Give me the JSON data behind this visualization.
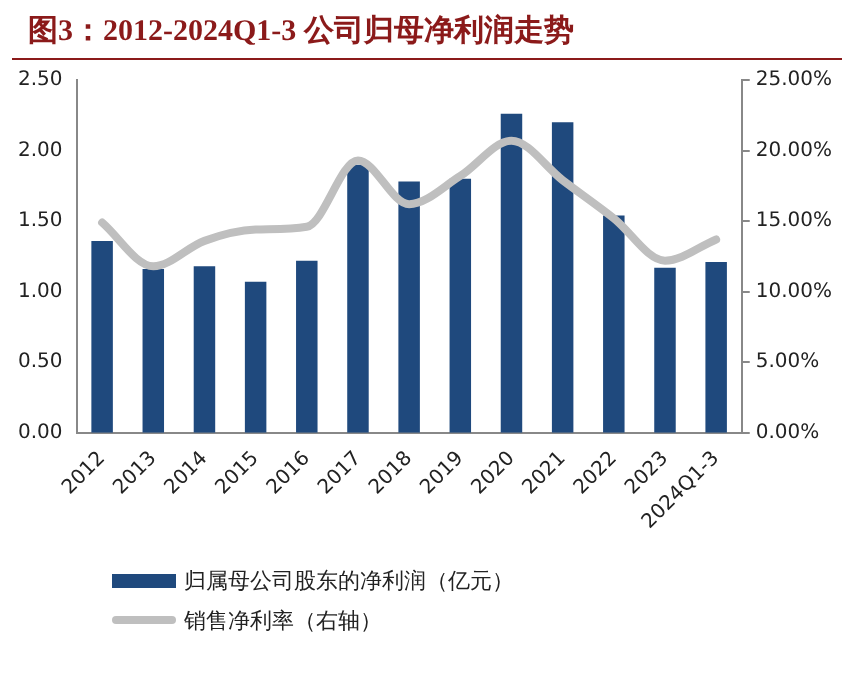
{
  "chart_data": {
    "type": "bar",
    "title": "图3：2012-2024Q1-3 公司归母净利润走势",
    "categories": [
      "2012",
      "2013",
      "2014",
      "2015",
      "2016",
      "2017",
      "2018",
      "2019",
      "2020",
      "2021",
      "2022",
      "2023",
      "2024Q1-3"
    ],
    "series": [
      {
        "name": "归属母公司股东的净利润（亿元）",
        "color": "#1f497d",
        "values": [
          1.36,
          1.16,
          1.18,
          1.07,
          1.22,
          1.9,
          1.78,
          1.8,
          2.26,
          2.2,
          1.54,
          1.17,
          1.21
        ]
      },
      {
        "name": "销售净利率（右轴）",
        "type": "line",
        "axis": "y2",
        "color": "#bfbfbf",
        "values": [
          14.9,
          11.8,
          13.6,
          14.4,
          14.6,
          19.3,
          16.2,
          18.2,
          20.7,
          17.9,
          15.2,
          12.2,
          13.7
        ]
      }
    ],
    "ylim": [
      0,
      2.5
    ],
    "yticks": [
      {
        "value": 0,
        "label": "0.00"
      },
      {
        "value": 0.5,
        "label": "0.50"
      },
      {
        "value": 1,
        "label": "1.00"
      },
      {
        "value": 1.5,
        "label": "1.50"
      },
      {
        "value": 2,
        "label": "2.00"
      },
      {
        "value": 2.5,
        "label": "2.50"
      }
    ],
    "y2lim": [
      0,
      25
    ],
    "y2ticks": [
      {
        "value": 0,
        "label": "0.00%"
      },
      {
        "value": 5,
        "label": "5.00%"
      },
      {
        "value": 10,
        "label": "10.00%"
      },
      {
        "value": 15,
        "label": "15.00%"
      },
      {
        "value": 20,
        "label": "20.00%"
      },
      {
        "value": 25,
        "label": "25.00%"
      }
    ],
    "grid": false,
    "legend": "bottom left",
    "marker": "none"
  }
}
